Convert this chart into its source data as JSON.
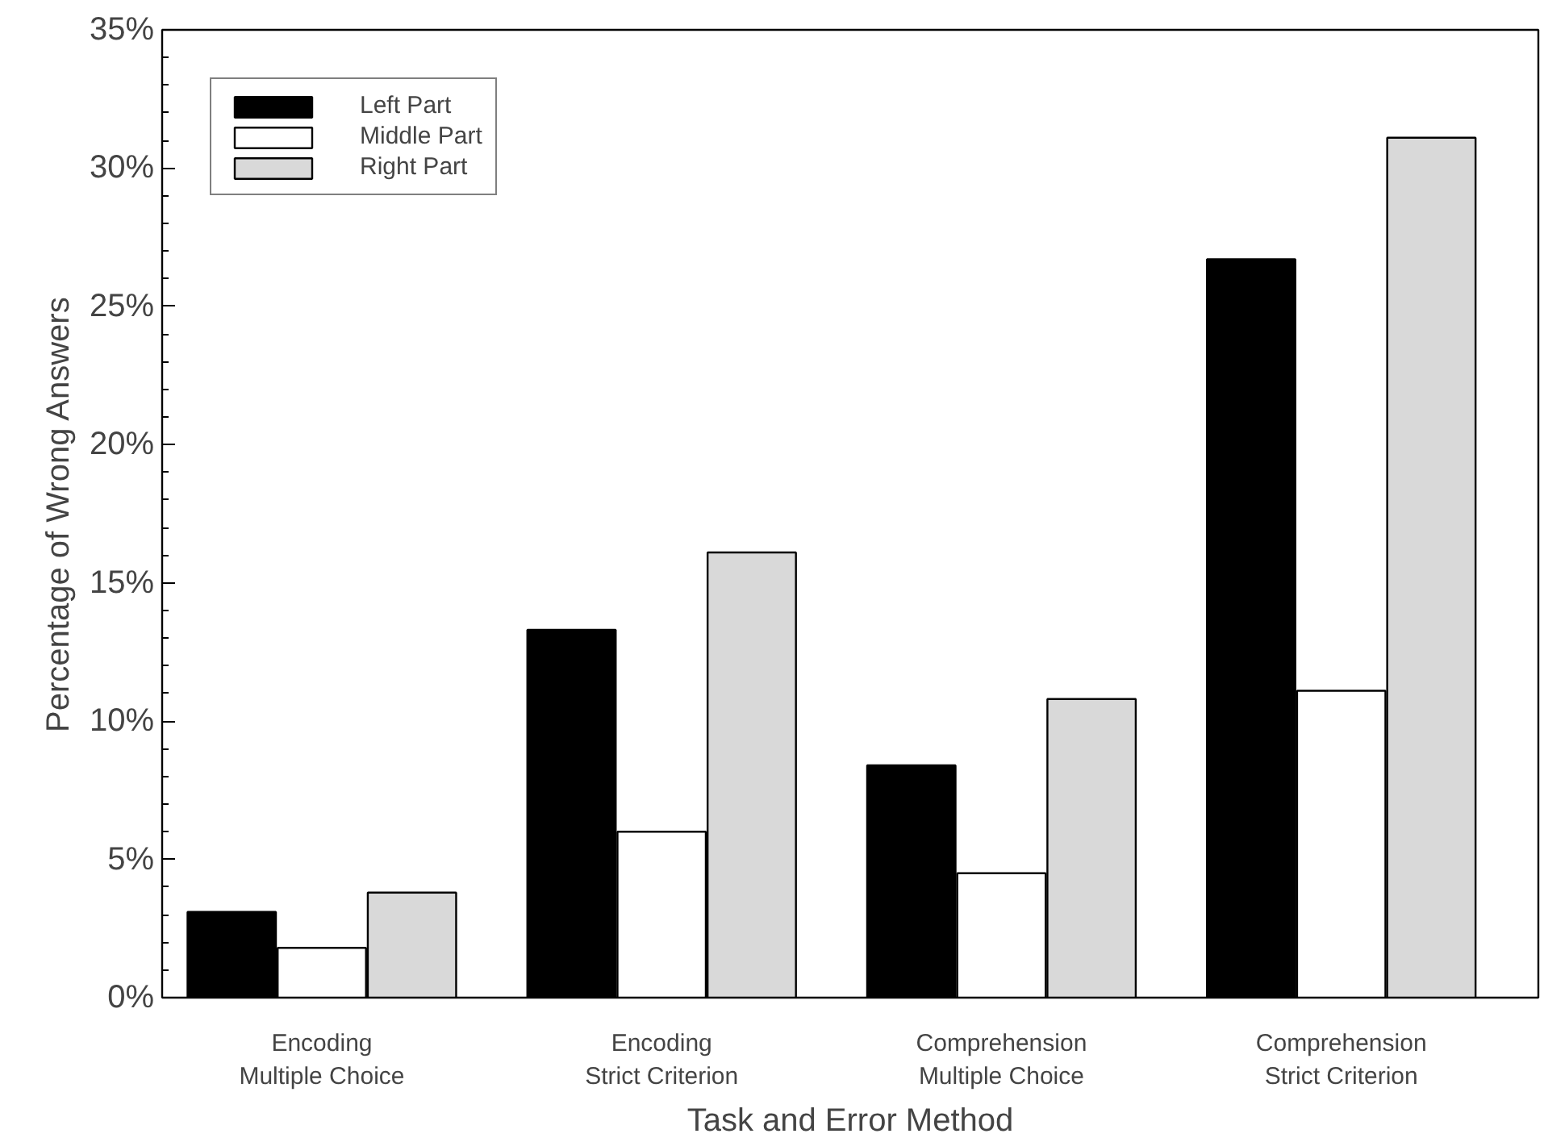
{
  "chart_data": {
    "type": "bar",
    "xlabel": "Task and Error Method",
    "ylabel": "Percentage of Wrong Answers",
    "categories": [
      "Encoding\nMultiple Choice",
      "Encoding\nStrict Criterion",
      "Comprehension\nMultiple Choice",
      "Comprehension\nStrict Criterion"
    ],
    "series": [
      {
        "name": "Left Part",
        "color": "#000000",
        "values": [
          3.1,
          13.3,
          8.4,
          26.7
        ]
      },
      {
        "name": "Middle Part",
        "color": "#ffffff",
        "values": [
          1.8,
          6.0,
          4.5,
          11.1
        ]
      },
      {
        "name": "Right Part",
        "color": "#d9d9d9",
        "values": [
          3.8,
          16.1,
          10.8,
          31.1
        ]
      }
    ],
    "ylim": [
      0,
      35
    ],
    "yticks": [
      {
        "value": 0,
        "label": "0%"
      },
      {
        "value": 5,
        "label": "5%"
      },
      {
        "value": 10,
        "label": "10%"
      },
      {
        "value": 15,
        "label": "15%"
      },
      {
        "value": 20,
        "label": "20%"
      },
      {
        "value": 25,
        "label": "25%"
      },
      {
        "value": 30,
        "label": "30%"
      },
      {
        "value": 35,
        "label": "35%"
      }
    ],
    "grid": false,
    "legend": "top left"
  }
}
